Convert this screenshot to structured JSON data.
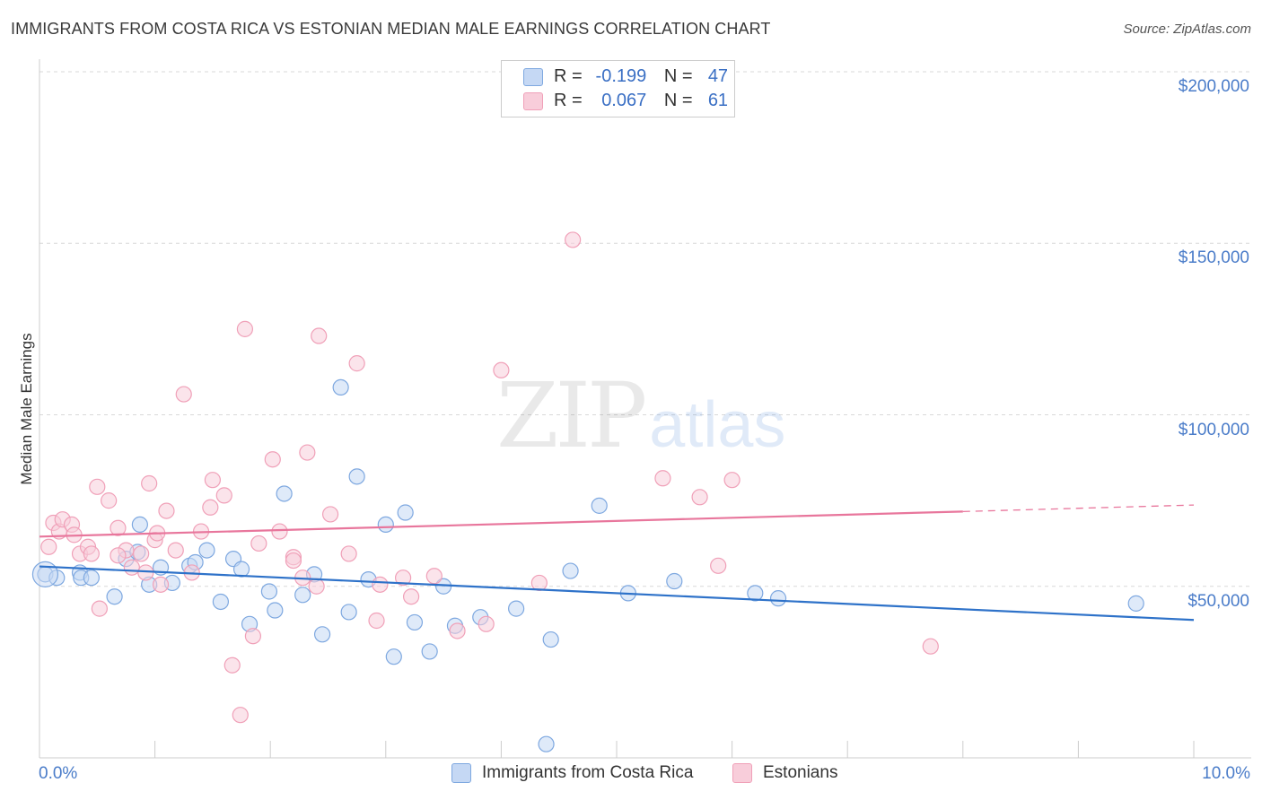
{
  "chart_data": {
    "type": "scatter",
    "title": "IMMIGRANTS FROM COSTA RICA VS ESTONIAN MEDIAN MALE EARNINGS CORRELATION CHART",
    "source": "Source: ZipAtlas.com",
    "xlabel": "",
    "ylabel": "Median Male Earnings",
    "xlim": [
      0,
      10
    ],
    "ylim": [
      0,
      200000
    ],
    "x_tick_labels": [
      "0.0%",
      "10.0%"
    ],
    "y_ticks": [
      {
        "value": 50000,
        "label": "$50,000"
      },
      {
        "value": 100000,
        "label": "$100,000"
      },
      {
        "value": 150000,
        "label": "$150,000"
      },
      {
        "value": 200000,
        "label": "$200,000"
      }
    ],
    "grid": true,
    "legend_position": "bottom-center",
    "watermark": {
      "zip": "ZIP",
      "atlas": "atlas"
    },
    "stats": [
      {
        "r_label": "R =",
        "r_value": "-0.199",
        "n_label": "N =",
        "n_value": "47"
      },
      {
        "r_label": "R =",
        "r_value": "0.067",
        "n_label": "N =",
        "n_value": "61"
      }
    ],
    "series": [
      {
        "name": "Immigrants from Costa Rica",
        "color": "#7ea8e0",
        "fill": "#c5d8f4",
        "line_color": "#2e72c9",
        "trend": {
          "x": [
            0,
            10
          ],
          "y": [
            55800,
            40200
          ]
        },
        "points": [
          [
            0.05,
            53500
          ],
          [
            0.15,
            52500
          ],
          [
            0.35,
            54000
          ],
          [
            0.36,
            52500
          ],
          [
            0.45,
            52500
          ],
          [
            0.65,
            47000
          ],
          [
            0.75,
            58000
          ],
          [
            0.85,
            60000
          ],
          [
            0.87,
            68000
          ],
          [
            0.95,
            50500
          ],
          [
            1.05,
            55500
          ],
          [
            1.15,
            51000
          ],
          [
            1.3,
            56000
          ],
          [
            1.35,
            57000
          ],
          [
            1.45,
            60500
          ],
          [
            1.57,
            45500
          ],
          [
            1.68,
            58000
          ],
          [
            1.75,
            55000
          ],
          [
            1.82,
            39000
          ],
          [
            1.99,
            48500
          ],
          [
            2.04,
            43000
          ],
          [
            2.12,
            77000
          ],
          [
            2.28,
            47500
          ],
          [
            2.38,
            53500
          ],
          [
            2.45,
            36000
          ],
          [
            2.61,
            108000
          ],
          [
            2.68,
            42500
          ],
          [
            2.75,
            82000
          ],
          [
            2.85,
            52000
          ],
          [
            3.0,
            68000
          ],
          [
            3.07,
            29500
          ],
          [
            3.17,
            71500
          ],
          [
            3.25,
            39500
          ],
          [
            3.38,
            31000
          ],
          [
            3.5,
            50000
          ],
          [
            3.6,
            38500
          ],
          [
            3.82,
            41000
          ],
          [
            4.13,
            43500
          ],
          [
            4.39,
            4000
          ],
          [
            4.43,
            34500
          ],
          [
            4.6,
            54500
          ],
          [
            4.85,
            73500
          ],
          [
            5.1,
            48000
          ],
          [
            5.5,
            51500
          ],
          [
            6.2,
            48000
          ],
          [
            6.4,
            46500
          ],
          [
            9.5,
            45000
          ]
        ]
      },
      {
        "name": "Estonians",
        "color": "#f0a0b8",
        "fill": "#f8cdda",
        "line_color": "#e8769c",
        "trend": {
          "x": [
            0,
            8.0
          ],
          "y": [
            64500,
            71800
          ]
        },
        "trend_dashed": {
          "x": [
            8.0,
            10
          ],
          "y": [
            71800,
            73700
          ]
        },
        "points": [
          [
            0.08,
            61500
          ],
          [
            0.12,
            68500
          ],
          [
            0.17,
            66000
          ],
          [
            0.2,
            69500
          ],
          [
            0.28,
            68000
          ],
          [
            0.3,
            65000
          ],
          [
            0.35,
            59500
          ],
          [
            0.42,
            61500
          ],
          [
            0.45,
            59500
          ],
          [
            0.5,
            79000
          ],
          [
            0.52,
            43500
          ],
          [
            0.6,
            75000
          ],
          [
            0.68,
            67000
          ],
          [
            0.75,
            60500
          ],
          [
            0.8,
            55500
          ],
          [
            0.88,
            59500
          ],
          [
            0.92,
            54000
          ],
          [
            0.95,
            80000
          ],
          [
            1.0,
            63500
          ],
          [
            1.05,
            50500
          ],
          [
            1.1,
            72000
          ],
          [
            1.18,
            60500
          ],
          [
            1.25,
            106000
          ],
          [
            1.32,
            54000
          ],
          [
            1.4,
            66000
          ],
          [
            1.48,
            73000
          ],
          [
            1.5,
            81000
          ],
          [
            1.6,
            76500
          ],
          [
            1.67,
            27000
          ],
          [
            1.74,
            12500
          ],
          [
            1.78,
            125000
          ],
          [
            1.85,
            35500
          ],
          [
            1.9,
            62500
          ],
          [
            2.02,
            87000
          ],
          [
            2.08,
            66000
          ],
          [
            2.2,
            58500
          ],
          [
            2.28,
            52500
          ],
          [
            2.32,
            89000
          ],
          [
            2.42,
            123000
          ],
          [
            2.52,
            71000
          ],
          [
            2.68,
            59500
          ],
          [
            2.75,
            115000
          ],
          [
            2.92,
            40000
          ],
          [
            2.95,
            50500
          ],
          [
            3.15,
            52500
          ],
          [
            3.22,
            47000
          ],
          [
            3.42,
            53000
          ],
          [
            3.62,
            37000
          ],
          [
            3.87,
            39000
          ],
          [
            4.0,
            113000
          ],
          [
            4.33,
            51000
          ],
          [
            4.62,
            151000
          ],
          [
            5.4,
            81500
          ],
          [
            5.72,
            76000
          ],
          [
            5.88,
            56000
          ],
          [
            6.0,
            81000
          ],
          [
            7.72,
            32500
          ],
          [
            2.2,
            57500
          ],
          [
            1.02,
            65500
          ],
          [
            0.68,
            59000
          ],
          [
            2.4,
            50000
          ]
        ]
      }
    ]
  }
}
